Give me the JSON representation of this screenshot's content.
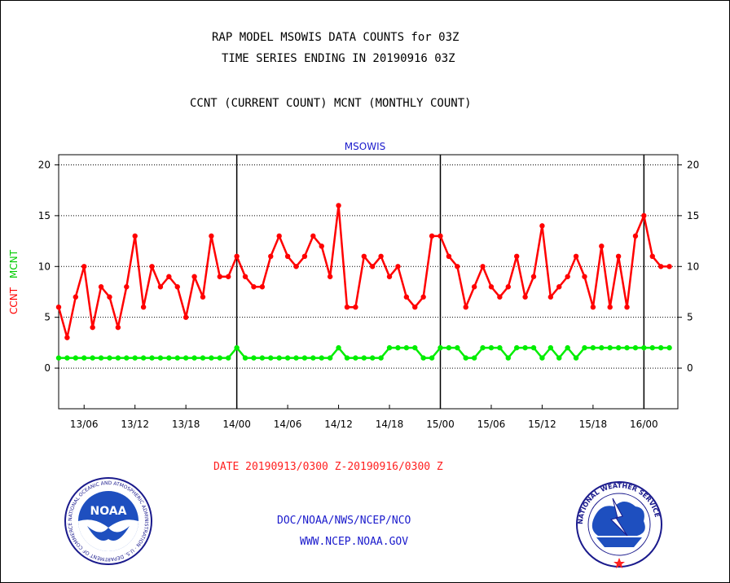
{
  "header": {
    "line1": "RAP MODEL MSOWIS DATA COUNTS for 03Z",
    "line2": "TIME SERIES ENDING IN 20190916 03Z",
    "line3": "CCNT (CURRENT COUNT) MCNT (MONTHLY COUNT)"
  },
  "footer": {
    "date_range": "DATE 20190913/0300 Z-20190916/0300 Z",
    "org": "DOC/NOAA/NWS/NCEP/NCO",
    "url": "WWW.NCEP.NOAA.GOV"
  },
  "logos": {
    "noaa": {
      "center_text": "NOAA",
      "ring_text": "NATIONAL OCEANIC AND ATMOSPHERIC ADMINISTRATION · U.S. DEPARTMENT OF COMMERCE"
    },
    "nws": {
      "ring_text": "NATIONAL WEATHER SERVICE"
    }
  },
  "chart_data": {
    "type": "line",
    "title": "MSOWIS",
    "ylabel_series": [
      "CCNT",
      "MCNT"
    ],
    "ylim": [
      -4,
      21
    ],
    "yticks": [
      0,
      5,
      10,
      15,
      20
    ],
    "xlim": [
      0,
      73
    ],
    "x_tick_positions": [
      3,
      9,
      15,
      21,
      27,
      33,
      39,
      45,
      51,
      57,
      63,
      69
    ],
    "x_tick_labels": [
      "13/06",
      "13/12",
      "13/18",
      "14/00",
      "14/06",
      "14/12",
      "14/18",
      "15/00",
      "15/06",
      "15/12",
      "15/18",
      "16/00"
    ],
    "day_dividers": [
      21,
      45,
      69
    ],
    "grid": true,
    "series": [
      {
        "name": "CCNT",
        "color": "#ff0000",
        "values": [
          6,
          3,
          7,
          10,
          4,
          8,
          7,
          4,
          8,
          13,
          6,
          10,
          8,
          9,
          8,
          5,
          9,
          7,
          13,
          9,
          9,
          11,
          9,
          8,
          8,
          11,
          13,
          11,
          10,
          11,
          13,
          12,
          9,
          16,
          6,
          6,
          11,
          10,
          11,
          9,
          10,
          7,
          6,
          7,
          13,
          13,
          11,
          10,
          6,
          8,
          10,
          8,
          7,
          8,
          11,
          7,
          9,
          14,
          7,
          8,
          9,
          11,
          9,
          6,
          12,
          6,
          11,
          6,
          13,
          15,
          11,
          10,
          10
        ]
      },
      {
        "name": "MCNT",
        "color": "#00ee00",
        "values": [
          1,
          1,
          1,
          1,
          1,
          1,
          1,
          1,
          1,
          1,
          1,
          1,
          1,
          1,
          1,
          1,
          1,
          1,
          1,
          1,
          1,
          2,
          1,
          1,
          1,
          1,
          1,
          1,
          1,
          1,
          1,
          1,
          1,
          2,
          1,
          1,
          1,
          1,
          1,
          2,
          2,
          2,
          2,
          1,
          1,
          2,
          2,
          2,
          1,
          1,
          2,
          2,
          2,
          1,
          2,
          2,
          2,
          1,
          2,
          1,
          2,
          1,
          2,
          2,
          2,
          2,
          2,
          2,
          2,
          2,
          2,
          2,
          2
        ]
      }
    ]
  }
}
